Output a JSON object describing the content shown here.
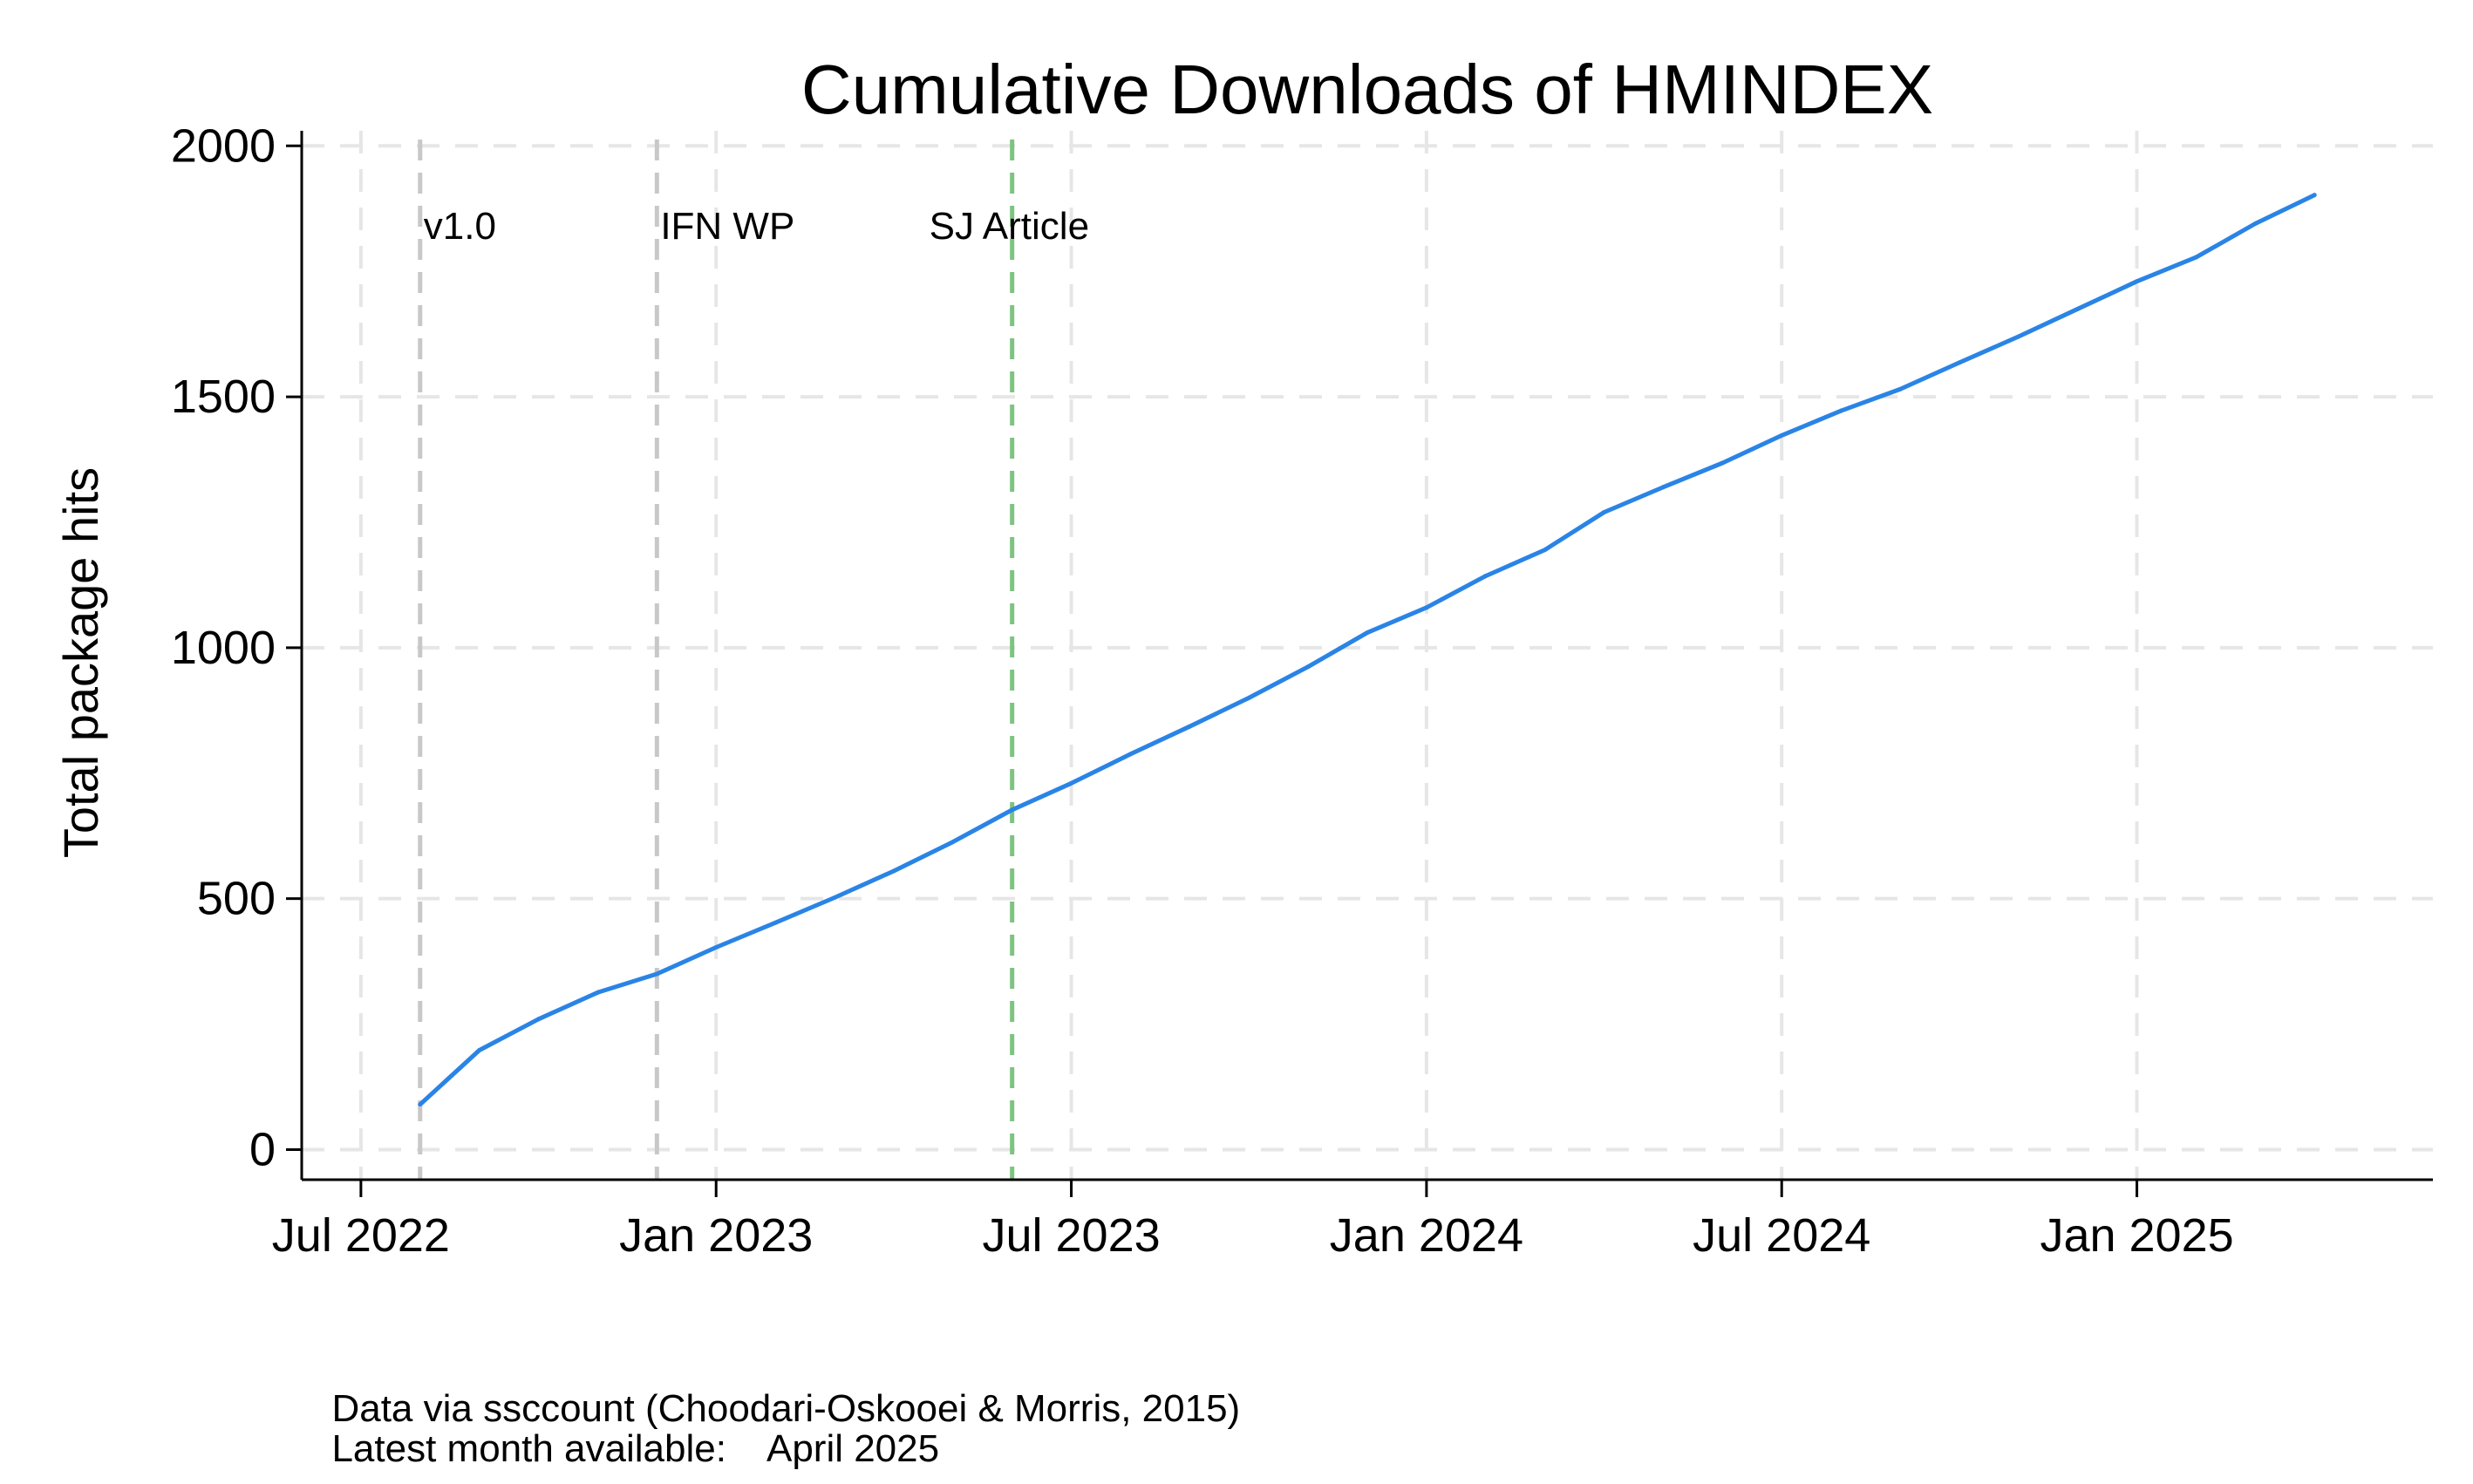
{
  "chart_data": {
    "type": "line",
    "title": "Cumulative Downloads of HMINDEX",
    "xlabel": "",
    "ylabel": "Total package hits",
    "ylim": [
      -60,
      2030
    ],
    "xlim": [
      "2022-06",
      "2025-06"
    ],
    "y_ticks": [
      0,
      500,
      1000,
      1500,
      2000
    ],
    "x_ticks": [
      {
        "date": "2022-07",
        "label": "Jul 2022"
      },
      {
        "date": "2023-01",
        "label": "Jan 2023"
      },
      {
        "date": "2023-07",
        "label": "Jul 2023"
      },
      {
        "date": "2024-01",
        "label": "Jan 2024"
      },
      {
        "date": "2024-07",
        "label": "Jul 2024"
      },
      {
        "date": "2025-01",
        "label": "Jan 2025"
      }
    ],
    "grid": true,
    "series": [
      {
        "color": "#2a84e6",
        "points": [
          [
            "2022-08",
            90
          ],
          [
            "2022-09",
            198
          ],
          [
            "2022-10",
            260
          ],
          [
            "2022-11",
            313
          ],
          [
            "2022-12",
            350
          ],
          [
            "2023-01",
            403
          ],
          [
            "2023-02",
            452
          ],
          [
            "2023-03",
            502
          ],
          [
            "2023-04",
            555
          ],
          [
            "2023-05",
            613
          ],
          [
            "2023-06",
            677
          ],
          [
            "2023-07",
            730
          ],
          [
            "2023-08",
            788
          ],
          [
            "2023-09",
            843
          ],
          [
            "2023-10",
            900
          ],
          [
            "2023-11",
            962
          ],
          [
            "2023-12",
            1030
          ],
          [
            "2024-01",
            1080
          ],
          [
            "2024-02",
            1143
          ],
          [
            "2024-03",
            1195
          ],
          [
            "2024-04",
            1270
          ],
          [
            "2024-05",
            1320
          ],
          [
            "2024-06",
            1368
          ],
          [
            "2024-07",
            1423
          ],
          [
            "2024-08",
            1472
          ],
          [
            "2024-09",
            1515
          ],
          [
            "2024-10",
            1568
          ],
          [
            "2024-11",
            1620
          ],
          [
            "2024-12",
            1675
          ],
          [
            "2025-01",
            1730
          ],
          [
            "2025-02",
            1778
          ],
          [
            "2025-03",
            1845
          ],
          [
            "2025-04",
            1902
          ]
        ]
      }
    ],
    "annotations": [
      {
        "date": "2022-08",
        "label": "v1.0",
        "color": "#c8c8c8"
      },
      {
        "date": "2022-12",
        "label": "IFN WP",
        "color": "#c8c8c8"
      },
      {
        "date": "2023-06",
        "label": "SJ Article",
        "color": "#7cc47f"
      }
    ]
  },
  "notes": {
    "source": "Data via ssccount (Choodari-Oskooei & Morris, 2015)",
    "latest_label": "Latest month available:",
    "latest_value": "April 2025"
  }
}
